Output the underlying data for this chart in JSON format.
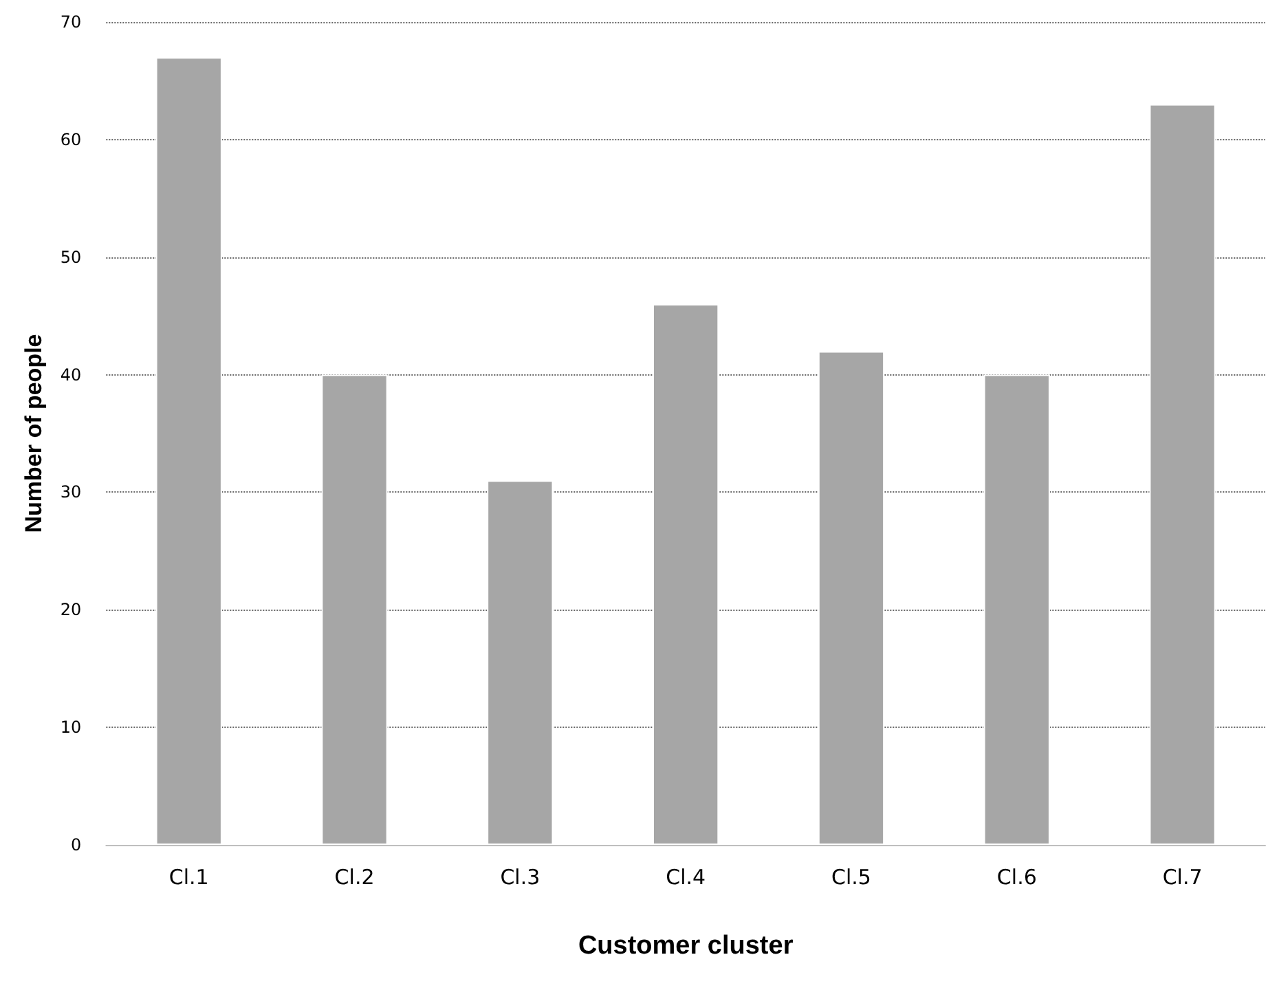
{
  "chart_data": {
    "type": "bar",
    "xlabel": "Customer cluster",
    "ylabel": "Number of people",
    "categories": [
      "Cl.1",
      "Cl.2",
      "Cl.3",
      "Cl.4",
      "Cl.5",
      "Cl.6",
      "Cl.7"
    ],
    "values": [
      67,
      40,
      31,
      46,
      42,
      40,
      63
    ],
    "color": "#a6a6a6",
    "ylim": [
      0,
      70
    ],
    "yticks": [
      0,
      10,
      20,
      30,
      40,
      50,
      60,
      70
    ],
    "grid": "y"
  }
}
